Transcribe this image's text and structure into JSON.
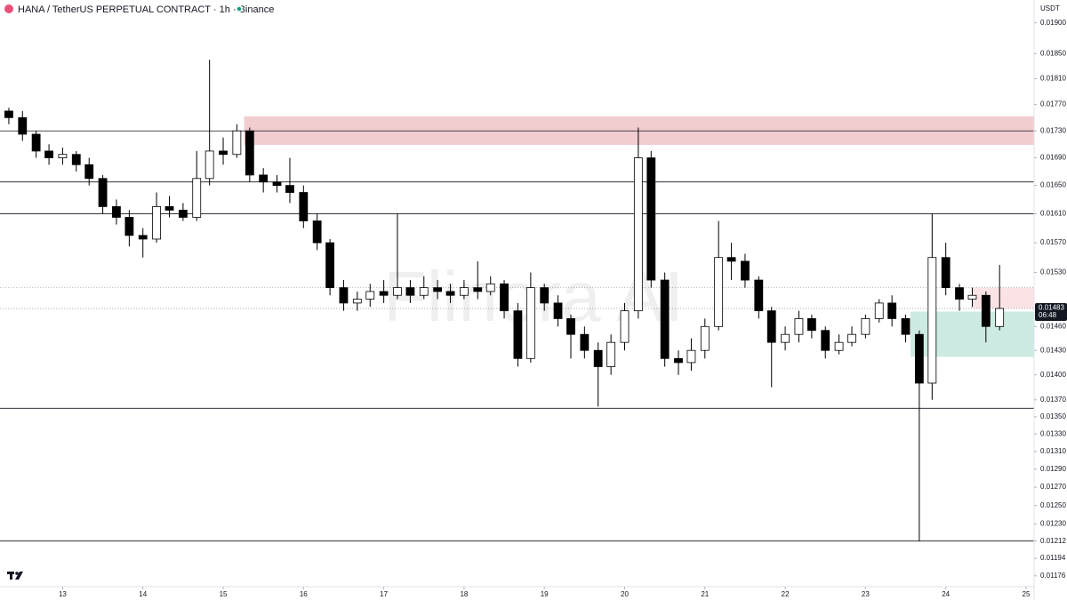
{
  "header": "HANA / TetherUS PERPETUAL CONTRACT · 1h · Binance",
  "watermark": "Flinora AI",
  "chart_data": {
    "type": "candlestick",
    "currency": "USDT",
    "log_scale": true,
    "up_color": "#ffffff",
    "down_color": "#000000",
    "x": [
      12.33,
      12.5,
      12.67,
      12.83,
      13,
      13.17,
      13.33,
      13.5,
      13.67,
      13.83,
      14,
      14.17,
      14.33,
      14.5,
      14.67,
      14.83,
      15,
      15.17,
      15.33,
      15.5,
      15.67,
      15.83,
      16,
      16.17,
      16.33,
      16.5,
      16.67,
      16.83,
      17,
      17.17,
      17.33,
      17.5,
      17.67,
      17.83,
      18,
      18.17,
      18.33,
      18.5,
      18.67,
      18.83,
      19,
      19.17,
      19.33,
      19.5,
      19.67,
      19.83,
      20,
      20.17,
      20.33,
      20.5,
      20.67,
      20.83,
      21,
      21.17,
      21.33,
      21.5,
      21.67,
      21.83,
      22,
      22.17,
      22.33,
      22.5,
      22.67,
      22.83,
      23,
      23.17,
      23.33,
      23.5,
      23.67,
      23.83,
      24,
      24.17,
      24.33,
      24.5,
      24.67
    ],
    "open": [
      0.0176,
      0.0175,
      0.01725,
      0.017,
      0.0169,
      0.01695,
      0.0168,
      0.0166,
      0.0162,
      0.01605,
      0.0158,
      0.01575,
      0.0162,
      0.01615,
      0.01605,
      0.0166,
      0.017,
      0.01695,
      0.0173,
      0.01665,
      0.01655,
      0.0165,
      0.0164,
      0.016,
      0.0157,
      0.0151,
      0.0149,
      0.01495,
      0.01505,
      0.015,
      0.0151,
      0.015,
      0.0151,
      0.01505,
      0.015,
      0.0151,
      0.01505,
      0.01515,
      0.0148,
      0.0142,
      0.0151,
      0.0149,
      0.0147,
      0.0145,
      0.0143,
      0.0141,
      0.0144,
      0.0148,
      0.0169,
      0.0152,
      0.0142,
      0.01415,
      0.0143,
      0.0146,
      0.0155,
      0.01545,
      0.0152,
      0.0148,
      0.0144,
      0.0145,
      0.0147,
      0.01455,
      0.0143,
      0.0144,
      0.0145,
      0.0147,
      0.0149,
      0.0147,
      0.0145,
      0.0139,
      0.0155,
      0.0151,
      0.01495,
      0.015,
      0.0146
    ],
    "high": [
      0.01765,
      0.0176,
      0.0173,
      0.0171,
      0.01705,
      0.017,
      0.0169,
      0.01665,
      0.0163,
      0.01615,
      0.0159,
      0.0164,
      0.01635,
      0.01625,
      0.017,
      0.0184,
      0.0172,
      0.0174,
      0.01735,
      0.01675,
      0.01665,
      0.0169,
      0.0165,
      0.0161,
      0.01575,
      0.0152,
      0.01505,
      0.01515,
      0.0152,
      0.0161,
      0.0152,
      0.01525,
      0.0152,
      0.01515,
      0.0152,
      0.01545,
      0.01525,
      0.0152,
      0.0149,
      0.0153,
      0.01515,
      0.015,
      0.01475,
      0.0146,
      0.0144,
      0.0145,
      0.0149,
      0.01735,
      0.017,
      0.0153,
      0.0143,
      0.01445,
      0.0147,
      0.016,
      0.0157,
      0.01555,
      0.01525,
      0.01485,
      0.0146,
      0.0148,
      0.01475,
      0.0146,
      0.0145,
      0.0146,
      0.01475,
      0.01495,
      0.015,
      0.01475,
      0.01455,
      0.0161,
      0.0157,
      0.01515,
      0.0151,
      0.01505,
      0.0154
    ],
    "low": [
      0.0174,
      0.01715,
      0.0169,
      0.0168,
      0.0168,
      0.0167,
      0.0165,
      0.0161,
      0.01595,
      0.01565,
      0.0155,
      0.0157,
      0.01605,
      0.016,
      0.016,
      0.0165,
      0.0168,
      0.0169,
      0.01655,
      0.0164,
      0.0164,
      0.01625,
      0.0159,
      0.0156,
      0.015,
      0.0148,
      0.0148,
      0.01485,
      0.0149,
      0.01495,
      0.0149,
      0.01495,
      0.01495,
      0.0149,
      0.01495,
      0.01495,
      0.015,
      0.0147,
      0.0141,
      0.01415,
      0.0148,
      0.0146,
      0.0142,
      0.0142,
      0.01362,
      0.014,
      0.0143,
      0.0147,
      0.0151,
      0.0141,
      0.014,
      0.01405,
      0.0142,
      0.01455,
      0.0152,
      0.0151,
      0.0147,
      0.01385,
      0.0143,
      0.0144,
      0.01445,
      0.0142,
      0.01425,
      0.01435,
      0.01445,
      0.01465,
      0.0146,
      0.0144,
      0.01212,
      0.0137,
      0.015,
      0.0148,
      0.01485,
      0.0144,
      0.01455
    ],
    "close": [
      0.0175,
      0.01725,
      0.017,
      0.0169,
      0.01695,
      0.0168,
      0.0166,
      0.0162,
      0.01605,
      0.0158,
      0.01575,
      0.0162,
      0.01615,
      0.01605,
      0.0166,
      0.017,
      0.01695,
      0.0173,
      0.01665,
      0.01655,
      0.0165,
      0.0164,
      0.016,
      0.0157,
      0.0151,
      0.0149,
      0.01495,
      0.01505,
      0.015,
      0.0151,
      0.015,
      0.0151,
      0.01505,
      0.015,
      0.0151,
      0.01505,
      0.01515,
      0.0148,
      0.0142,
      0.0151,
      0.0149,
      0.0147,
      0.0145,
      0.0143,
      0.0141,
      0.0144,
      0.0148,
      0.0169,
      0.0152,
      0.0142,
      0.01415,
      0.0143,
      0.0146,
      0.0155,
      0.01545,
      0.0152,
      0.0148,
      0.0144,
      0.0145,
      0.0147,
      0.01455,
      0.0143,
      0.0144,
      0.0145,
      0.0147,
      0.0149,
      0.0147,
      0.0145,
      0.0139,
      0.0155,
      0.0151,
      0.01495,
      0.015,
      0.0146,
      0.01483
    ],
    "xlim": [
      12.22,
      25.1
    ],
    "xticks": [
      13,
      14,
      15,
      16,
      17,
      18,
      19,
      20,
      21,
      22,
      23,
      24,
      25
    ],
    "ylim": [
      0.01165,
      0.01938
    ],
    "yticks": [
      {
        "value": 0.019,
        "label": "0.01900"
      },
      {
        "value": 0.0185,
        "label": "0.01850"
      },
      {
        "value": 0.0181,
        "label": "0.01810"
      },
      {
        "value": 0.0177,
        "label": "0.01770"
      },
      {
        "value": 0.0173,
        "label": "0.01730"
      },
      {
        "value": 0.0169,
        "label": "0.01690"
      },
      {
        "value": 0.0165,
        "label": "0.01650"
      },
      {
        "value": 0.0161,
        "label": "0.01610"
      },
      {
        "value": 0.0157,
        "label": "0.01570"
      },
      {
        "value": 0.0153,
        "label": "0.01530"
      },
      {
        "value": 0.0146,
        "label": "0.01460"
      },
      {
        "value": 0.0143,
        "label": "0.01430"
      },
      {
        "value": 0.014,
        "label": "0.01400"
      },
      {
        "value": 0.0137,
        "label": "0.01370"
      },
      {
        "value": 0.0135,
        "label": "0.01350"
      },
      {
        "value": 0.0133,
        "label": "0.01330"
      },
      {
        "value": 0.0131,
        "label": "0.01310"
      },
      {
        "value": 0.0129,
        "label": "0.01290"
      },
      {
        "value": 0.0127,
        "label": "0.01270"
      },
      {
        "value": 0.0125,
        "label": "0.01250"
      },
      {
        "value": 0.0123,
        "label": "0.01230"
      },
      {
        "value": 0.01212,
        "label": "0.01212"
      },
      {
        "value": 0.01194,
        "label": "0.01194"
      },
      {
        "value": 0.01176,
        "label": "0.01176"
      }
    ],
    "levels": [
      0.0173,
      0.01655,
      0.0161,
      0.0136,
      0.01212
    ],
    "dotted_levels": [
      0.0151,
      0.01483
    ],
    "zones": [
      {
        "x0": 15.26,
        "top": 0.01752,
        "bottom": 0.01709,
        "color": "#f2cdd0"
      },
      {
        "x0": 24.33,
        "top": 0.0151,
        "bottom": 0.01483,
        "color": "#fbe3e5"
      },
      {
        "x0": 23.56,
        "top": 0.01479,
        "bottom": 0.01422,
        "color": "#cdebe3"
      }
    ],
    "last_price": 0.01483,
    "countdown": "06:48"
  }
}
